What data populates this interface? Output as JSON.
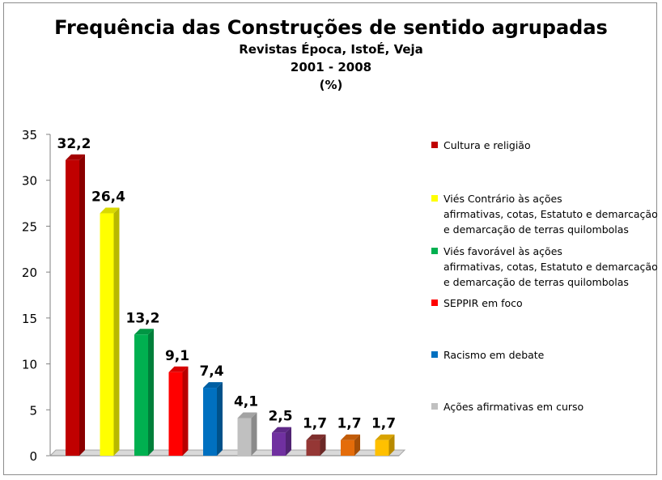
{
  "chart_data": {
    "type": "bar",
    "title": "Frequência das Construções de sentido agrupadas",
    "subtitle_lines": [
      "Revistas Época, IstoÉ, Veja",
      "2001 - 2008",
      "(%)"
    ],
    "values": [
      32.2,
      26.4,
      13.2,
      9.1,
      7.4,
      4.1,
      2.5,
      1.7,
      1.7,
      1.7
    ],
    "data_labels": [
      "32,2",
      "26,4",
      "13,2",
      "9,1",
      "7,4",
      "4,1",
      "2,5",
      "1,7",
      "1,7",
      "1,7"
    ],
    "colors": [
      "#c00000",
      "#ffff00",
      "#00b050",
      "#ff0000",
      "#0070c0",
      "#c0c0c0",
      "#7030a0",
      "#953735",
      "#e46c0a",
      "#ffc000"
    ],
    "ylim": [
      0,
      35
    ],
    "yticks": [
      "0",
      "5",
      "10",
      "15",
      "20",
      "25",
      "30",
      "35"
    ],
    "grid": false,
    "legend_position": "right",
    "legend": [
      {
        "label": "Cultura e religião",
        "color": "#c00000"
      },
      {
        "label": "Viés Contrário às ações\nafirmativas, cotas, Estatuto e demarcação\ne demarcação de terras quilombolas",
        "color": "#ffff00"
      },
      {
        "label": "Viés favorável às ações\nafirmativas, cotas, Estatuto e demarcação\ne demarcação de terras quilombolas",
        "color": "#00b050"
      },
      {
        "label": "SEPPIR em foco",
        "color": "#ff0000"
      },
      {
        "label": "Racismo em debate",
        "color": "#0070c0"
      },
      {
        "label": "Ações afirmativas em curso",
        "color": "#c0c0c0"
      }
    ]
  }
}
